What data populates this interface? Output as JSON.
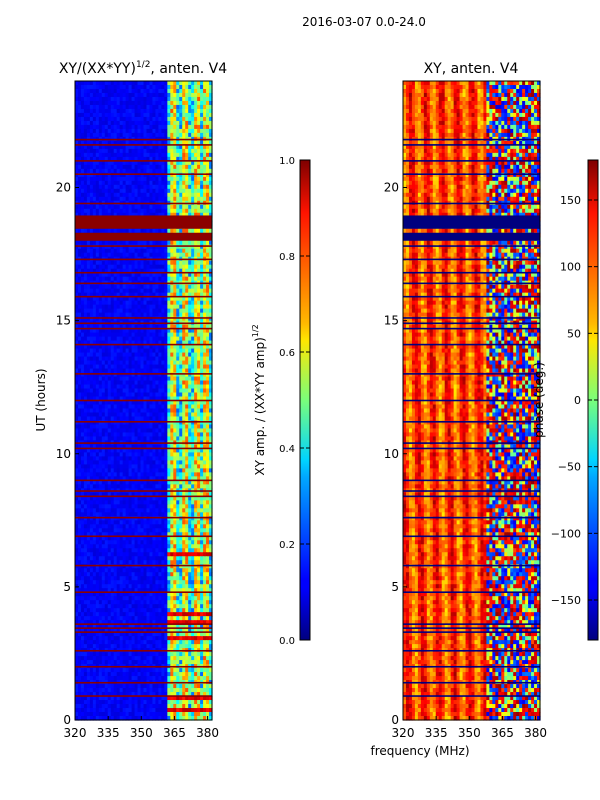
{
  "figure_title": "2016-03-07 0.0-24.0",
  "chart_data": [
    {
      "type": "heatmap",
      "title_main": "XY/(XX*YY)",
      "title_sup": "1/2",
      "title_suffix": ", anten. V4",
      "xlabel": "",
      "ylabel": "UT (hours)",
      "xlim": [
        320,
        382
      ],
      "ylim": [
        0,
        24
      ],
      "xticks": [
        320,
        335,
        350,
        365,
        380
      ],
      "yticks": [
        0,
        5,
        10,
        15,
        20
      ],
      "colorbar": {
        "label_main": "XY amp. / (XX*YY amp)",
        "label_sup": "1/2",
        "range": [
          0.0,
          1.0
        ],
        "ticks": [
          "0.0",
          "0.2",
          "0.4",
          "0.6",
          "0.8",
          "1.0"
        ],
        "tick_values": [
          0.0,
          0.2,
          0.4,
          0.6,
          0.8,
          1.0
        ],
        "colormap": "jet"
      },
      "features": {
        "background_level": 0.12,
        "bright_band_mhz": [
          362,
          382
        ],
        "bright_channels_mhz": [
          364.5,
          370,
          375.5,
          379.5
        ],
        "saturated_block_hours": [
          [
            18.45,
            18.95
          ],
          [
            18.0,
            18.3
          ]
        ],
        "flag_lines_hours": [
          0.9,
          1.4,
          2.0,
          2.6,
          3.3,
          3.45,
          3.6,
          4.8,
          5.8,
          6.9,
          7.6,
          8.4,
          8.6,
          9.0,
          10.2,
          10.4,
          11.2,
          12.0,
          13.0,
          14.1,
          14.7,
          14.9,
          15.1,
          15.9,
          16.4,
          16.8,
          17.3,
          17.8,
          19.4,
          20.5,
          21.0,
          21.6,
          21.8
        ]
      }
    },
    {
      "type": "heatmap",
      "title_main": "XY, anten. V4",
      "xlabel": "frequency (MHz)",
      "ylabel": "",
      "xlim": [
        320,
        382
      ],
      "ylim": [
        0,
        24
      ],
      "xticks": [
        320,
        335,
        350,
        365,
        380
      ],
      "yticks": [
        0,
        5,
        10,
        15,
        20
      ],
      "colorbar": {
        "label_main": "phase (deg.)",
        "range": [
          -180,
          180
        ],
        "ticks": [
          "−150",
          "−100",
          "−50",
          "0",
          "50",
          "100",
          "150"
        ],
        "tick_values": [
          -150,
          -100,
          -50,
          0,
          50,
          100,
          150
        ],
        "colormap": "jet"
      },
      "features": {
        "background_phase_deg": 110,
        "disturbed_band_mhz": [
          358,
          382
        ],
        "flagged_block_hours": [
          [
            18.45,
            18.95
          ],
          [
            18.0,
            18.3
          ]
        ],
        "flag_lines_hours": [
          0.9,
          1.4,
          2.0,
          2.6,
          3.3,
          3.45,
          3.6,
          4.8,
          5.8,
          6.9,
          7.6,
          8.4,
          8.6,
          9.0,
          10.2,
          10.4,
          11.2,
          12.0,
          13.0,
          14.1,
          14.7,
          14.9,
          15.1,
          15.9,
          16.4,
          16.8,
          17.3,
          17.8,
          19.4,
          20.5,
          21.0,
          21.6,
          21.8
        ]
      }
    }
  ]
}
